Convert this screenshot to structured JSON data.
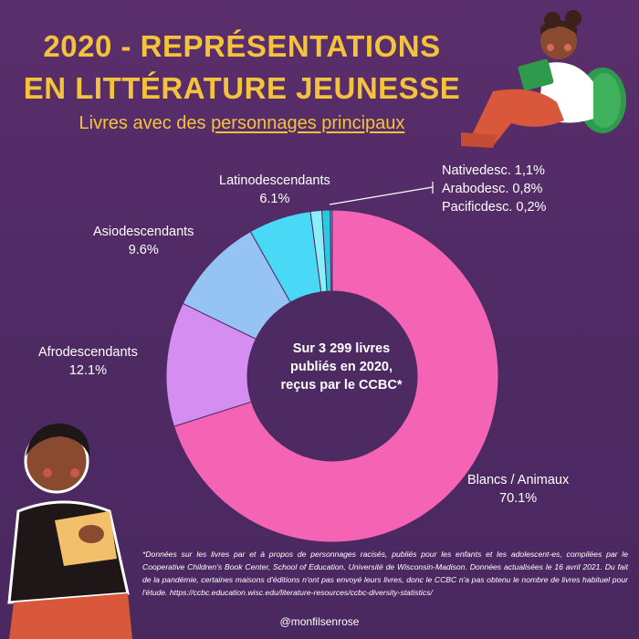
{
  "title_line1": "2020 - REPRÉSENTATIONS",
  "title_line2": "EN LITTÉRATURE JEUNESSE",
  "subtitle_prefix": "Livres avec des ",
  "subtitle_link": "personnages principaux",
  "center_text_line1": "Sur 3 299 livres",
  "center_text_line2": "publiés en 2020,",
  "center_text_line3": "reçus par le CCBC*",
  "footnote": "*Données sur les livres par et à propos de personnages racisés, publiés pour les enfants et les adolescent-es, compilées par le Cooperative Children's Book Center, School of Education, Université de Wisconsin-Madison. Données actualisées le 16 avril 2021. Du fait de la pandémie, certaines maisons d'éditions n'ont pas envoyé leurs livres, donc le CCBC n'a pas obtenu le nombre de livres habituel pour l'étude. https://ccbc.education.wisc.edu/literature-resources/ccbc-diversity-statistics/",
  "handle": "@monfilsenrose",
  "labels": {
    "blancs_name": "Blancs / Animaux",
    "blancs_pct": "70.1%",
    "afro_name": "Afrodescendants",
    "afro_pct": "12.1%",
    "asio_name": "Asiodescendants",
    "asio_pct": "9.6%",
    "latino_name": "Latinodescendants",
    "latino_pct": "6.1%",
    "native": "Nativedesc. 1,1%",
    "arabo": "Arabodesc.  0,8%",
    "pacific": "Pacificdesc. 0,2%"
  },
  "chart_data": {
    "type": "pie",
    "donut": true,
    "start": "top",
    "direction": "clockwise",
    "categories": [
      "Blancs / Animaux",
      "Afrodescendants",
      "Asiodescendants",
      "Latinodescendants",
      "Nativedesc.",
      "Arabodesc.",
      "Pacificdesc."
    ],
    "values": [
      70.1,
      12.1,
      9.6,
      6.1,
      1.1,
      0.8,
      0.2
    ],
    "colors": [
      "#f564b4",
      "#d58df2",
      "#95c3f3",
      "#49d8f5",
      "#8ceef8",
      "#2cc8e0",
      "#6a8fd0"
    ]
  }
}
